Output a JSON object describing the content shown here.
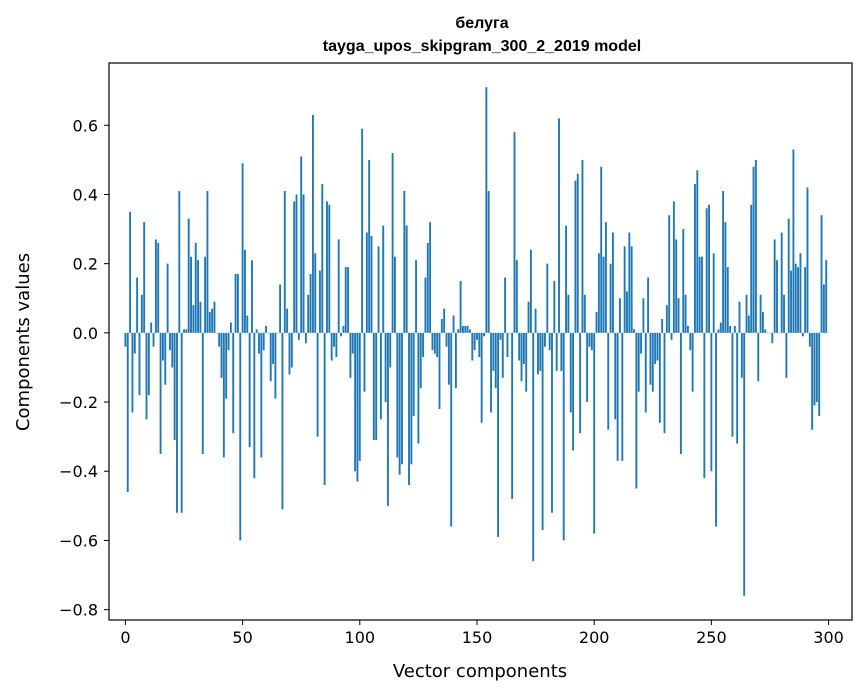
{
  "chart_data": {
    "type": "bar",
    "title": "белуга",
    "subtitle": "tayga_upos_skipgram_300_2_2019 model",
    "xlabel": "Vector components",
    "ylabel": "Components values",
    "xlim": [
      -7,
      310
    ],
    "ylim": [
      -0.83,
      0.78
    ],
    "xticks": [
      0,
      50,
      100,
      150,
      200,
      250,
      300
    ],
    "yticks": [
      -0.8,
      -0.6,
      -0.4,
      -0.2,
      0.0,
      0.2,
      0.4,
      0.6
    ],
    "ytick_labels": [
      "−0.8",
      "−0.6",
      "−0.4",
      "−0.2",
      "0.0",
      "0.2",
      "0.4",
      "0.6"
    ],
    "bar_color": "#1f77b4",
    "x": "component index 0..299",
    "values": [
      -0.04,
      -0.46,
      0.35,
      -0.23,
      -0.06,
      0.16,
      -0.18,
      0.11,
      0.32,
      -0.25,
      -0.18,
      0.03,
      -0.04,
      0.27,
      0.26,
      -0.35,
      -0.08,
      -0.15,
      0.2,
      -0.05,
      -0.1,
      -0.31,
      -0.52,
      0.41,
      -0.52,
      0.01,
      0.01,
      0.33,
      0.22,
      0.08,
      0.26,
      0.21,
      0.09,
      -0.35,
      0.22,
      0.41,
      0.06,
      0.07,
      0.09,
      0.0,
      -0.04,
      -0.13,
      -0.36,
      -0.19,
      -0.05,
      0.03,
      -0.29,
      0.17,
      0.17,
      -0.6,
      0.49,
      0.24,
      0.05,
      -0.33,
      0.21,
      -0.42,
      0.01,
      -0.06,
      -0.36,
      -0.05,
      0.02,
      0.0,
      -0.14,
      -0.09,
      -0.19,
      0.0,
      0.14,
      -0.51,
      0.41,
      0.07,
      -0.12,
      -0.1,
      0.38,
      0.4,
      -0.02,
      0.51,
      0.4,
      -0.03,
      0.11,
      0.17,
      0.63,
      0.23,
      -0.3,
      0.18,
      0.43,
      -0.44,
      0.38,
      0.37,
      -0.08,
      -0.04,
      -0.07,
      0.27,
      -0.01,
      0.02,
      0.19,
      0.19,
      -0.13,
      -0.06,
      -0.4,
      -0.43,
      -0.37,
      0.59,
      -0.17,
      0.29,
      0.5,
      0.28,
      -0.31,
      -0.31,
      0.25,
      -0.25,
      0.31,
      -0.2,
      -0.5,
      -0.1,
      0.52,
      0.22,
      -0.36,
      -0.41,
      -0.38,
      0.41,
      0.31,
      -0.44,
      -0.38,
      -0.24,
      0.21,
      -0.32,
      -0.16,
      -0.07,
      0.16,
      0.26,
      0.32,
      -0.05,
      -0.06,
      -0.07,
      -0.22,
      0.04,
      0.07,
      -0.04,
      -0.15,
      -0.56,
      0.05,
      -0.16,
      0.01,
      0.15,
      0.02,
      0.02,
      0.02,
      0.01,
      -0.08,
      -0.05,
      -0.02,
      -0.07,
      -0.26,
      -0.01,
      0.71,
      0.41,
      -0.23,
      -0.11,
      -0.16,
      -0.59,
      -0.02,
      -0.13,
      0.16,
      -0.07,
      0.0,
      -0.48,
      0.58,
      0.21,
      -0.08,
      -0.14,
      -0.09,
      -0.17,
      0.09,
      0.24,
      -0.66,
      0.07,
      -0.12,
      -0.11,
      -0.57,
      -0.04,
      0.2,
      -0.05,
      -0.52,
      0.15,
      -0.11,
      0.62,
      -0.11,
      -0.6,
      0.31,
      0.11,
      -0.23,
      -0.34,
      0.44,
      0.46,
      -0.29,
      0.5,
      0.11,
      -0.2,
      -0.04,
      -0.05,
      -0.58,
      0.06,
      0.23,
      0.48,
      0.22,
      0.32,
      -0.28,
      0.2,
      0.29,
      -0.25,
      -0.37,
      0.1,
      -0.37,
      0.25,
      0.12,
      0.29,
      0.25,
      0.01,
      -0.45,
      -0.17,
      -0.06,
      0.1,
      -0.23,
      0.16,
      -0.15,
      -0.17,
      -0.09,
      -0.08,
      -0.26,
      0.04,
      -0.29,
      0.08,
      0.34,
      -0.02,
      0.38,
      0.27,
      0.1,
      -0.35,
      0.3,
      0.11,
      0.02,
      -0.05,
      -0.17,
      0.43,
      0.47,
      0.22,
      0.22,
      -0.42,
      0.36,
      0.37,
      -0.4,
      0.23,
      -0.56,
      0.01,
      0.03,
      0.41,
      0.32,
      0.19,
      0.02,
      -0.3,
      0.02,
      -0.32,
      0.09,
      -0.13,
      -0.76,
      0.11,
      0.05,
      0.37,
      0.48,
      0.5,
      -0.14,
      0.11,
      0.06,
      0.01,
      0.0,
      0.0,
      -0.03,
      0.27,
      0.21,
      0.0,
      0.29,
      0.11,
      -0.13,
      0.33,
      0.18,
      0.53,
      0.2,
      0.19,
      0.23,
      -0.01,
      0.19,
      0.42,
      -0.04,
      -0.28,
      -0.21,
      -0.2,
      -0.24,
      0.34,
      0.14,
      0.21
    ]
  }
}
